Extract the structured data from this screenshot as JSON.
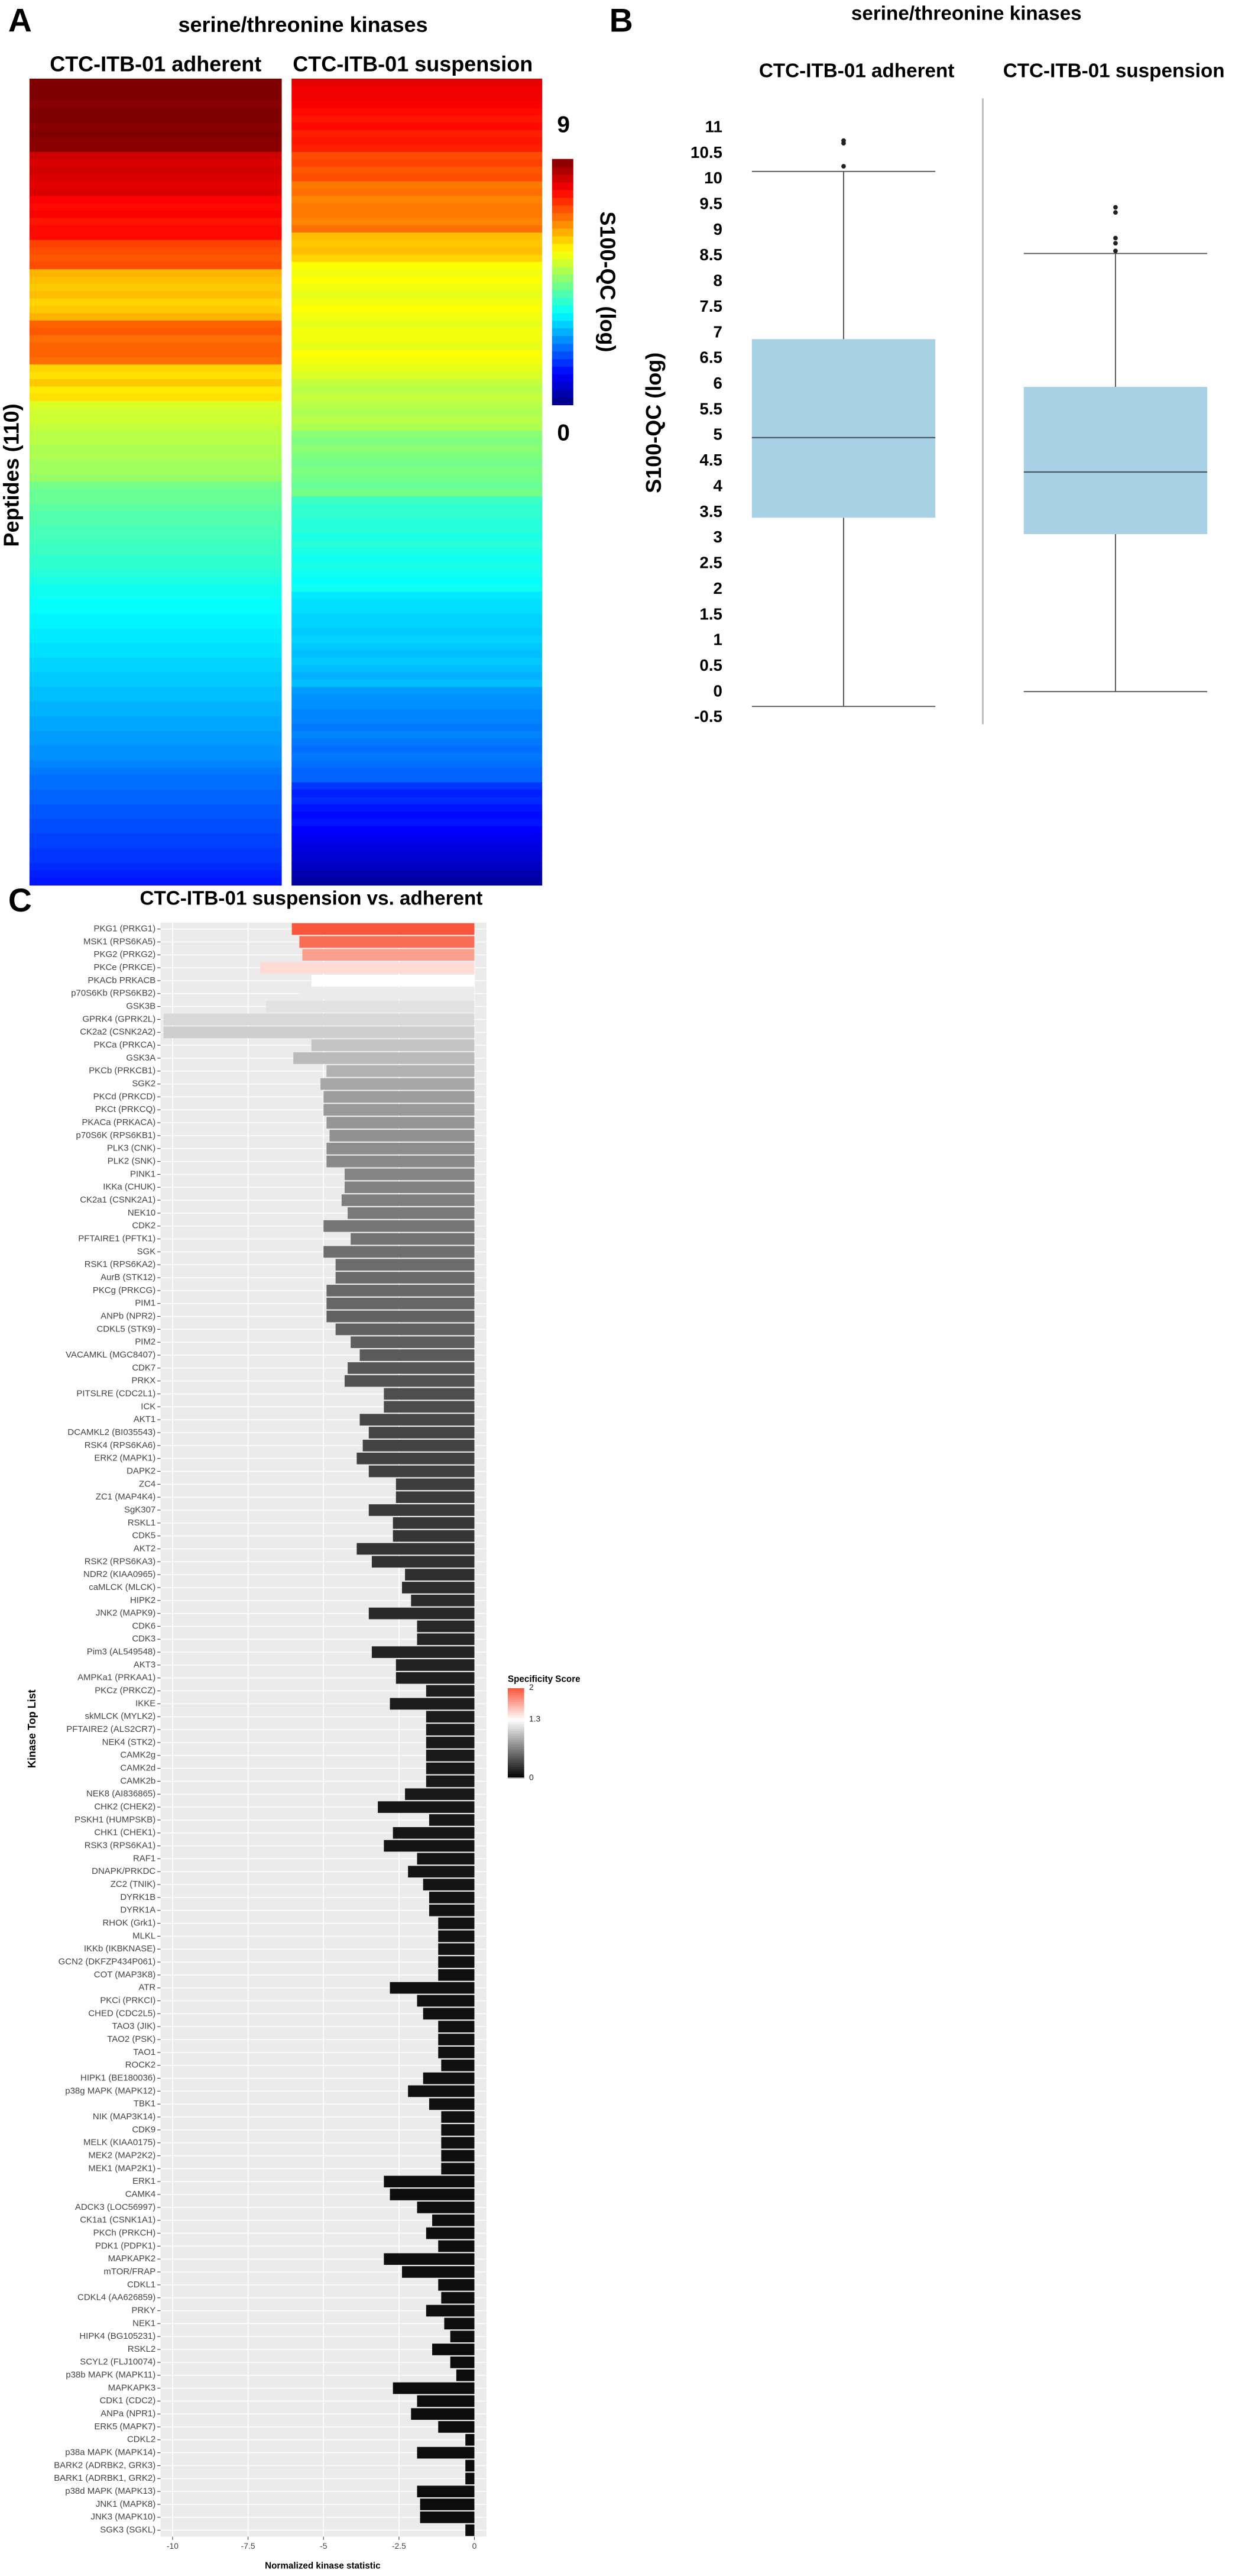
{
  "chart_data": [
    {
      "type": "heatmap",
      "panel": "A",
      "title": "serine/threonine kinases",
      "ylabel": "Peptides (110)",
      "series": [
        {
          "name": "CTC-ITB-01 adherent",
          "values": [
            9.0,
            9.0,
            9.0,
            8.9,
            9.0,
            9.0,
            8.9,
            9.0,
            8.9,
            8.9,
            8.3,
            8.2,
            8.3,
            8.2,
            8.1,
            8.2,
            7.9,
            7.8,
            7.9,
            7.7,
            7.8,
            7.8,
            7.3,
            7.2,
            7.1,
            7.2,
            6.3,
            6.2,
            6.1,
            6.2,
            6.0,
            6.1,
            6.3,
            7.0,
            7.1,
            6.9,
            7.0,
            7.0,
            6.9,
            6.0,
            5.9,
            6.1,
            5.8,
            5.9,
            5.3,
            5.2,
            5.2,
            5.1,
            5.0,
            5.0,
            4.9,
            4.9,
            4.8,
            4.8,
            4.7,
            4.4,
            4.3,
            4.3,
            4.2,
            4.1,
            4.1,
            4.0,
            4.0,
            3.9,
            3.9,
            3.8,
            3.8,
            3.7,
            3.6,
            3.5,
            3.5,
            3.4,
            3.4,
            3.3,
            3.3,
            3.2,
            3.2,
            3.1,
            3.1,
            3.0,
            3.0,
            2.9,
            2.9,
            2.8,
            2.8,
            2.7,
            2.7,
            2.6,
            2.6,
            2.5,
            2.5,
            2.4,
            2.4,
            2.3,
            2.2,
            2.1,
            2.1,
            2.0,
            2.0,
            1.9,
            1.9,
            1.8,
            1.8,
            1.7,
            1.7,
            1.6,
            1.6,
            1.5,
            1.4,
            1.3
          ]
        },
        {
          "name": "CTC-ITB-01 suspension",
          "values": [
            8.1,
            8.0,
            8.0,
            7.9,
            7.8,
            7.7,
            7.8,
            7.6,
            7.7,
            7.6,
            7.2,
            7.3,
            7.1,
            7.2,
            6.8,
            6.9,
            6.7,
            6.8,
            6.8,
            6.7,
            6.9,
            6.2,
            6.1,
            6.2,
            6.0,
            5.6,
            5.5,
            5.6,
            5.5,
            5.4,
            5.5,
            5.6,
            5.5,
            5.4,
            5.5,
            5.5,
            5.4,
            5.6,
            5.5,
            5.4,
            5.3,
            5.1,
            5.0,
            5.1,
            5.0,
            4.9,
            5.0,
            4.9,
            4.6,
            4.5,
            4.6,
            4.5,
            4.4,
            4.5,
            4.4,
            4.3,
            4.4,
            3.9,
            3.8,
            3.8,
            3.7,
            3.7,
            3.6,
            3.7,
            3.6,
            3.5,
            3.6,
            3.5,
            3.4,
            3.5,
            3.2,
            3.1,
            3.1,
            3.0,
            3.0,
            2.9,
            3.0,
            2.9,
            2.8,
            2.9,
            2.8,
            2.7,
            2.8,
            2.5,
            2.4,
            2.4,
            2.3,
            2.3,
            2.2,
            2.3,
            2.2,
            2.1,
            2.2,
            2.1,
            2.0,
            2.0,
            1.6,
            1.4,
            1.5,
            1.3,
            1.2,
            1.3,
            1.1,
            1.0,
            0.9,
            0.8,
            0.7,
            0.6,
            0.4,
            0.3
          ]
        }
      ],
      "colorbar": {
        "label": "S100-QC (log)",
        "lim": [
          0,
          9
        ],
        "ticks": [
          9,
          0
        ],
        "colors": [
          "#00007f",
          "#0000ff",
          "#007fff",
          "#00ffff",
          "#7fff7f",
          "#ffff00",
          "#ff7f00",
          "#ff0000",
          "#7f0000"
        ]
      }
    },
    {
      "type": "box",
      "panel": "B",
      "title": "serine/threonine kinases",
      "ylabel": "S100-QC (log)",
      "categories": [
        "CTC-ITB-01 adherent",
        "CTC-ITB-01 suspension"
      ],
      "color": "#a9d1e5",
      "boxes": [
        {
          "whislo": -0.28,
          "q1": 3.4,
          "med": 4.96,
          "q3": 6.88,
          "whishi": 10.15,
          "fliers": [
            10.25,
            10.7,
            10.75
          ]
        },
        {
          "whislo": 0.01,
          "q1": 3.08,
          "med": 4.29,
          "q3": 5.95,
          "whishi": 8.55,
          "fliers": [
            8.6,
            8.75,
            8.85,
            9.35,
            9.45
          ]
        }
      ],
      "ylim": [
        -0.5,
        11
      ],
      "yticks": [
        -0.5,
        0,
        0.5,
        1,
        1.5,
        2,
        2.5,
        3,
        3.5,
        4,
        4.5,
        5,
        5.5,
        6,
        6.5,
        7,
        7.5,
        8,
        8.5,
        9,
        9.5,
        10,
        10.5,
        11
      ]
    },
    {
      "type": "barh",
      "panel": "C",
      "title": "CTC-ITB-01 suspension vs. adherent",
      "xlabel": "Normalized kinase statistic",
      "ylabel": "Kinase Top List",
      "categories": [
        "PKG1 (PRKG1)",
        "MSK1 (RPS6KA5)",
        "PKG2 (PRKG2)",
        "PKCe (PRKCE)",
        "PKACb PRKACB",
        "p70S6Kb (RPS6KB2)",
        "GSK3B",
        "GPRK4 (GPRK2L)",
        "CK2a2 (CSNK2A2)",
        "PKCa (PRKCA)",
        "GSK3A",
        "PKCb (PRKCB1)",
        "SGK2",
        "PKCd (PRKCD)",
        "PKCt (PRKCQ)",
        "PKACa (PRKACA)",
        "p70S6K (RPS6KB1)",
        "PLK3 (CNK)",
        "PLK2 (SNK)",
        "PINK1",
        "IKKa (CHUK)",
        "CK2a1 (CSNK2A1)",
        "NEK10",
        "CDK2",
        "PFTAIRE1 (PFTK1)",
        "SGK",
        "RSK1 (RPS6KA2)",
        "AurB (STK12)",
        "PKCg (PRKCG)",
        "PIM1",
        "ANPb (NPR2)",
        "CDKL5 (STK9)",
        "PIM2",
        "VACAMKL (MGC8407)",
        "CDK7",
        "PRKX",
        "PITSLRE (CDC2L1)",
        "ICK",
        "AKT1",
        "DCAMKL2 (BI035543)",
        "RSK4 (RPS6KA6)",
        "ERK2 (MAPK1)",
        "DAPK2",
        "ZC4",
        "ZC1 (MAP4K4)",
        "SgK307",
        "RSKL1",
        "CDK5",
        "AKT2",
        "RSK2 (RPS6KA3)",
        "NDR2 (KIAA0965)",
        "caMLCK (MLCK)",
        "HIPK2",
        "JNK2 (MAPK9)",
        "CDK6",
        "CDK3",
        "Pim3 (AL549548)",
        "AKT3",
        "AMPKa1 (PRKAA1)",
        "PKCz (PRKCZ)",
        "IKKE",
        "skMLCK (MYLK2)",
        "PFTAIRE2 (ALS2CR7)",
        "NEK4 (STK2)",
        "CAMK2g",
        "CAMK2d",
        "CAMK2b",
        "NEK8 (AI836865)",
        "CHK2 (CHEK2)",
        "PSKH1 (HUMPSKB)",
        "CHK1 (CHEK1)",
        "RSK3 (RPS6KA1)",
        "RAF1",
        "DNAPK/PRKDC",
        "ZC2 (TNIK)",
        "DYRK1B",
        "DYRK1A",
        "RHOK (Grk1)",
        "MLKL",
        "IKKb (IKBKNASE)",
        "GCN2 (DKFZP434P061)",
        "COT (MAP3K8)",
        "ATR",
        "PKCi (PRKCI)",
        "CHED (CDC2L5)",
        "TAO3 (JIK)",
        "TAO2 (PSK)",
        "TAO1",
        "ROCK2",
        "HIPK1 (BE180036)",
        "p38g MAPK (MAPK12)",
        "TBK1",
        "NIK (MAP3K14)",
        "CDK9",
        "MELK (KIAA0175)",
        "MEK2 (MAP2K2)",
        "MEK1 (MAP2K1)",
        "ERK1",
        "CAMK4",
        "ADCK3 (LOC56997)",
        "CK1a1 (CSNK1A1)",
        "PKCh (PRKCH)",
        "PDK1 (PDPK1)",
        "MAPKAPK2",
        "mTOR/FRAP",
        "CDKL1",
        "CDKL4 (AA626859)",
        "PRKY",
        "NEK1",
        "HIPK4 (BG105231)",
        "RSKL2",
        "SCYL2 (FLJ10074)",
        "p38b MAPK (MAPK11)",
        "MAPKAPK3",
        "CDK1 (CDC2)",
        "ANPa (NPR1)",
        "ERK5 (MAPK7)",
        "CDKL2",
        "p38a MAPK (MAPK14)",
        "BARK2 (ADRBK2, GRK3)",
        "BARK1 (ADRBK1, GRK2)",
        "p38d MAPK (MAPK13)",
        "JNK1 (MAPK8)",
        "JNK3 (MAPK10)",
        "SGK3 (SGKL)"
      ],
      "values": [
        -6.05,
        -5.8,
        -5.7,
        -7.1,
        -5.4,
        -5.8,
        -6.9,
        -10.3,
        -10.3,
        -5.4,
        -6.0,
        -4.9,
        -5.1,
        -5.0,
        -5.0,
        -4.9,
        -4.8,
        -4.9,
        -4.9,
        -4.3,
        -4.3,
        -4.4,
        -4.2,
        -5.0,
        -4.1,
        -5.0,
        -4.6,
        -4.6,
        -4.9,
        -4.9,
        -4.9,
        -4.6,
        -4.1,
        -3.8,
        -4.2,
        -4.3,
        -3.0,
        -3.0,
        -3.8,
        -3.5,
        -3.7,
        -3.9,
        -3.5,
        -2.6,
        -2.6,
        -3.5,
        -2.7,
        -2.7,
        -3.9,
        -3.4,
        -2.3,
        -2.4,
        -2.1,
        -3.5,
        -1.9,
        -1.9,
        -3.4,
        -2.6,
        -2.6,
        -1.6,
        -2.8,
        -1.6,
        -1.6,
        -1.6,
        -1.6,
        -1.6,
        -1.6,
        -2.3,
        -3.2,
        -1.5,
        -2.7,
        -3.0,
        -1.9,
        -2.2,
        -1.7,
        -1.5,
        -1.5,
        -1.2,
        -1.2,
        -1.2,
        -1.2,
        -1.2,
        -2.8,
        -1.9,
        -1.7,
        -1.2,
        -1.2,
        -1.2,
        -1.1,
        -1.7,
        -2.2,
        -1.5,
        -1.1,
        -1.1,
        -1.1,
        -1.1,
        -1.1,
        -3.0,
        -2.8,
        -1.9,
        -1.4,
        -1.6,
        -1.2,
        -3.0,
        -2.4,
        -1.2,
        -1.1,
        -1.6,
        -1.0,
        -0.8,
        -1.4,
        -0.8,
        -0.6,
        -2.7,
        -1.9,
        -2.1,
        -1.2,
        -0.3,
        -1.9,
        -0.3,
        -0.3,
        -1.9,
        -1.8,
        -1.8,
        -0.3
      ],
      "specificity": [
        2.0,
        1.9,
        1.7,
        1.45,
        1.3,
        1.2,
        1.15,
        1.1,
        1.05,
        1.0,
        0.95,
        0.9,
        0.85,
        0.8,
        0.78,
        0.76,
        0.74,
        0.72,
        0.7,
        0.68,
        0.66,
        0.64,
        0.62,
        0.6,
        0.58,
        0.56,
        0.55,
        0.54,
        0.53,
        0.52,
        0.5,
        0.49,
        0.48,
        0.46,
        0.44,
        0.42,
        0.4,
        0.38,
        0.36,
        0.35,
        0.34,
        0.33,
        0.32,
        0.31,
        0.3,
        0.29,
        0.28,
        0.27,
        0.26,
        0.25,
        0.24,
        0.23,
        0.22,
        0.21,
        0.2,
        0.19,
        0.18,
        0.17,
        0.16,
        0.15,
        0.14,
        0.14,
        0.13,
        0.13,
        0.13,
        0.12,
        0.12,
        0.12,
        0.11,
        0.11,
        0.11,
        0.1,
        0.1,
        0.1,
        0.1,
        0.09,
        0.09,
        0.09,
        0.09,
        0.09,
        0.08,
        0.08,
        0.08,
        0.08,
        0.08,
        0.08,
        0.08,
        0.08,
        0.08,
        0.08,
        0.08,
        0.08,
        0.08,
        0.08,
        0.08,
        0.07,
        0.07,
        0.07,
        0.07,
        0.07,
        0.07,
        0.07,
        0.07,
        0.07,
        0.07,
        0.07,
        0.07,
        0.07,
        0.07,
        0.07,
        0.06,
        0.06,
        0.06,
        0.06,
        0.06,
        0.06,
        0.06,
        0.06,
        0.06,
        0.06,
        0.06,
        0.06,
        0.06,
        0.06,
        0.06
      ],
      "xlim": [
        -10.4,
        0.4
      ],
      "xticks": [
        -10,
        -7.5,
        -5,
        -2.5,
        0
      ],
      "grid": true,
      "colorbar": {
        "label": "Specificity Score",
        "lim": [
          0,
          2
        ],
        "ticks": [
          0,
          1.3,
          2
        ],
        "colors": [
          "#000000",
          "#ffffff",
          "#f8553a"
        ]
      }
    }
  ]
}
